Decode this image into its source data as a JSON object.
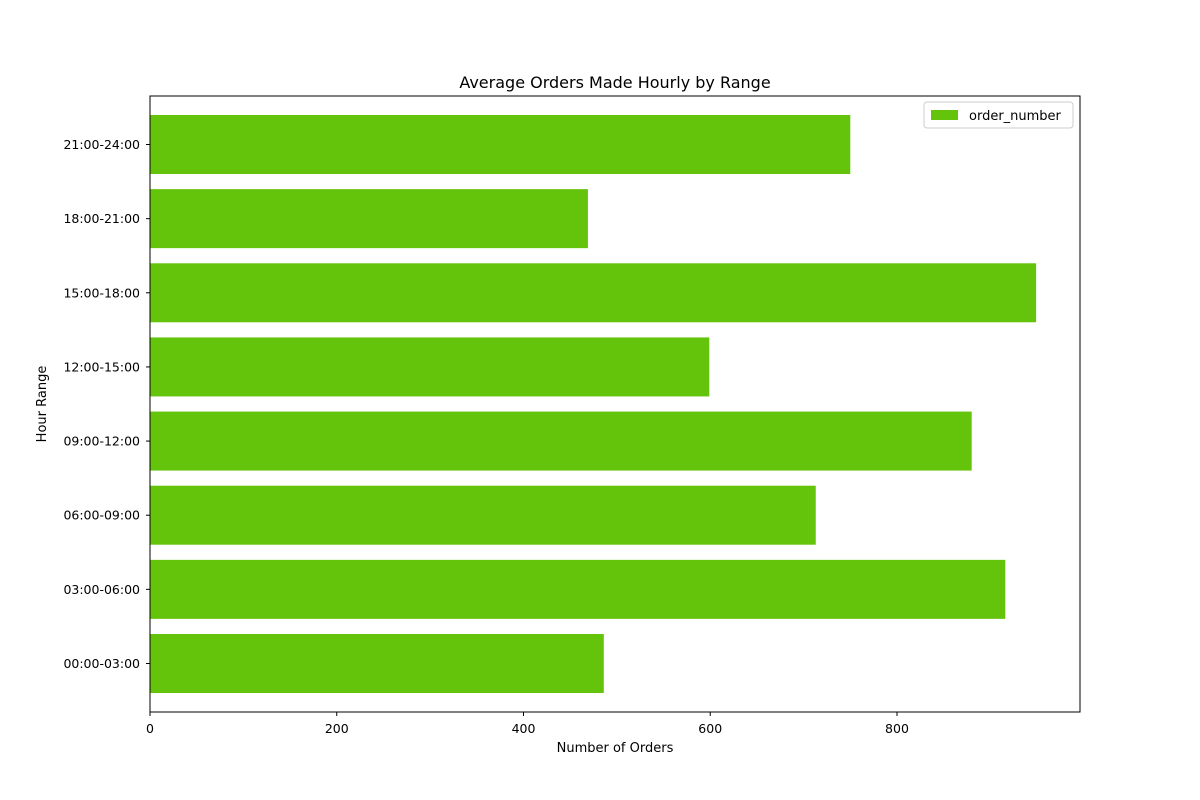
{
  "chart_data": {
    "type": "bar",
    "orientation": "horizontal",
    "title": "Average Orders Made Hourly by Range",
    "xlabel": "Number of Orders",
    "ylabel": "Hour Range",
    "categories": [
      "00:00-03:00",
      "03:00-06:00",
      "06:00-09:00",
      "09:00-12:00",
      "12:00-15:00",
      "15:00-18:00",
      "18:00-21:00",
      "21:00-24:00"
    ],
    "series": [
      {
        "name": "order_number",
        "values": [
          486,
          916,
          713,
          880,
          599,
          949,
          469,
          750
        ],
        "color": "#64c40b"
      }
    ],
    "xlim": [
      0,
      996
    ],
    "xticks": [
      0,
      200,
      400,
      600,
      800
    ],
    "grid": false,
    "legend_position": "top-right"
  }
}
